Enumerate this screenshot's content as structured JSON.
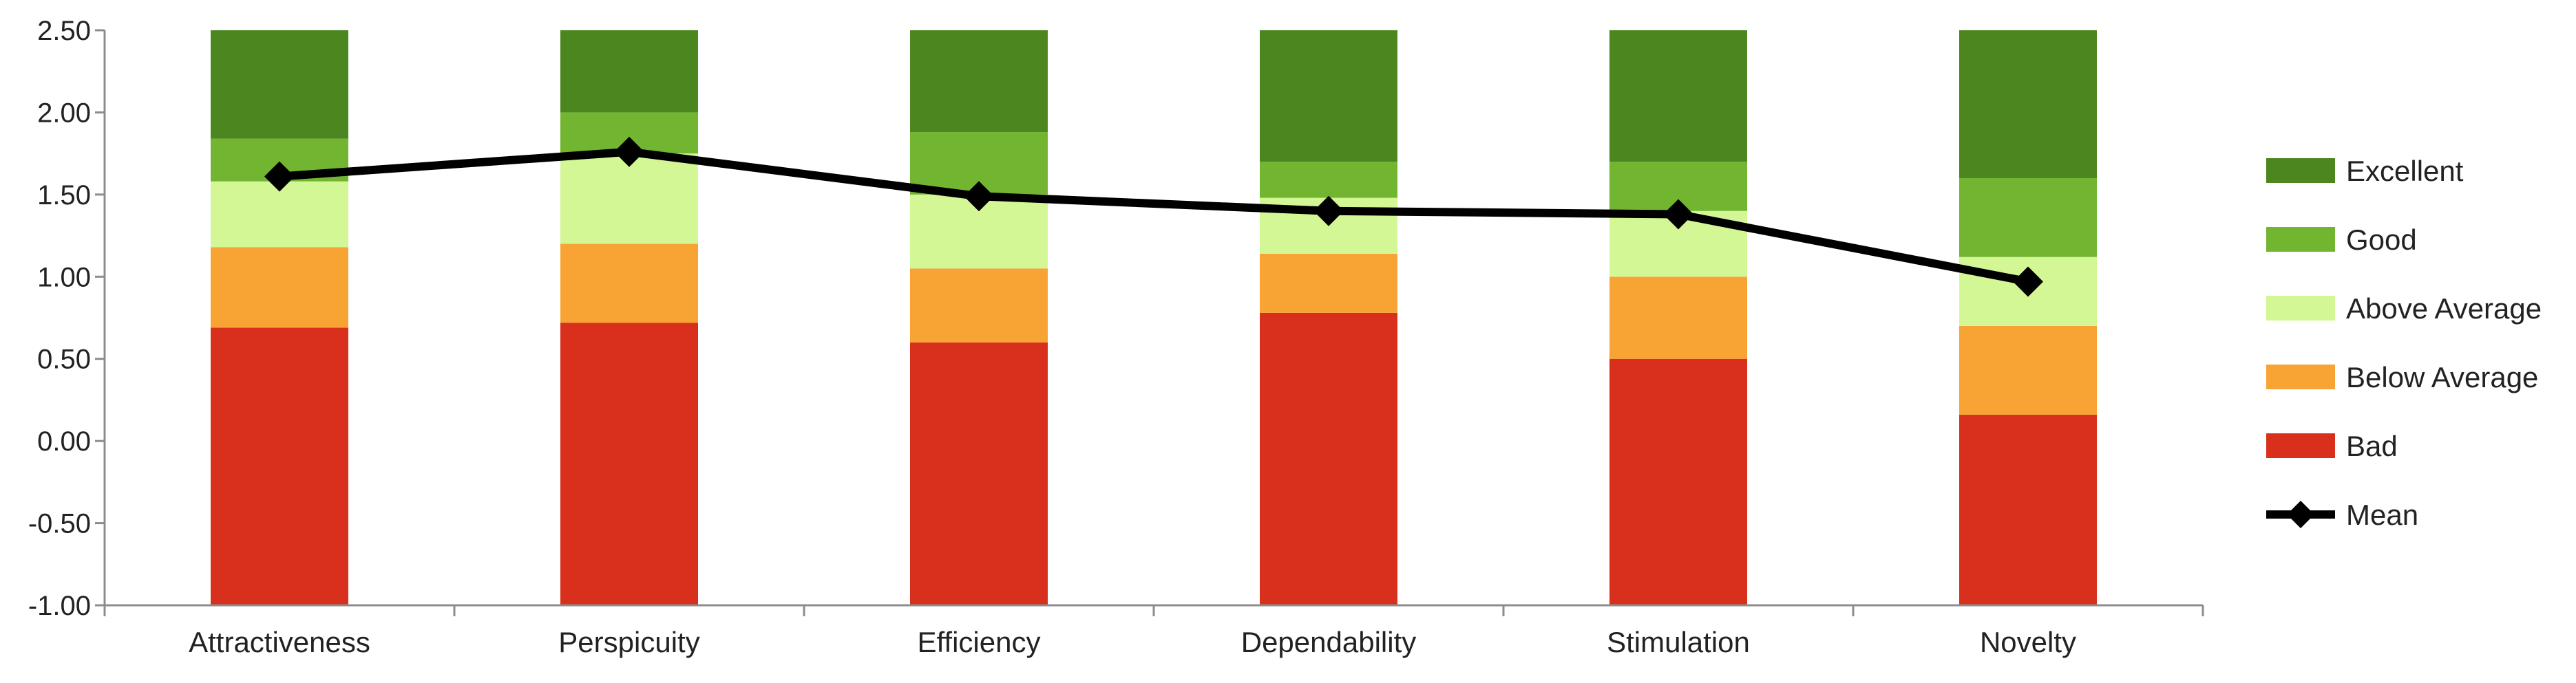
{
  "chart_data": {
    "type": "bar",
    "stacked": true,
    "title": "",
    "xlabel": "",
    "ylabel": "",
    "ylim": [
      -1.0,
      2.5
    ],
    "y_ticks": [
      "2.50",
      "2.00",
      "1.50",
      "1.00",
      "0.50",
      "0.00",
      "-0.50",
      "-1.00"
    ],
    "y_tick_values": [
      2.5,
      2.0,
      1.5,
      1.0,
      0.5,
      0.0,
      -0.5,
      -1.0
    ],
    "gridlines": false,
    "legend_position": "right",
    "categories": [
      "Attractiveness",
      "Perspicuity",
      "Efficiency",
      "Dependability",
      "Stimulation",
      "Novelty"
    ],
    "series": [
      {
        "name": "Bad",
        "color": "#d8301c",
        "boundaries": [
          [
            -1.0,
            0.69
          ],
          [
            -1.0,
            0.72
          ],
          [
            -1.0,
            0.6
          ],
          [
            -1.0,
            0.78
          ],
          [
            -1.0,
            0.5
          ],
          [
            -1.0,
            0.16
          ]
        ]
      },
      {
        "name": "Below Average",
        "color": "#f8a434",
        "boundaries": [
          [
            0.69,
            1.18
          ],
          [
            0.72,
            1.2
          ],
          [
            0.6,
            1.05
          ],
          [
            0.78,
            1.14
          ],
          [
            0.5,
            1.0
          ],
          [
            0.16,
            0.7
          ]
        ]
      },
      {
        "name": "Above Average",
        "color": "#d4f796",
        "boundaries": [
          [
            1.18,
            1.58
          ],
          [
            1.2,
            1.75
          ],
          [
            1.05,
            1.5
          ],
          [
            1.14,
            1.48
          ],
          [
            1.0,
            1.4
          ],
          [
            0.7,
            1.12
          ]
        ]
      },
      {
        "name": "Good",
        "color": "#72b531",
        "boundaries": [
          [
            1.58,
            1.84
          ],
          [
            1.75,
            2.0
          ],
          [
            1.5,
            1.88
          ],
          [
            1.48,
            1.7
          ],
          [
            1.4,
            1.7
          ],
          [
            1.12,
            1.6
          ]
        ]
      },
      {
        "name": "Excellent",
        "color": "#4b861e",
        "boundaries": [
          [
            1.84,
            2.5
          ],
          [
            2.0,
            2.5
          ],
          [
            1.88,
            2.5
          ],
          [
            1.7,
            2.5
          ],
          [
            1.7,
            2.5
          ],
          [
            1.6,
            2.5
          ]
        ]
      }
    ],
    "mean": {
      "name": "Mean",
      "color": "#000000",
      "values": [
        1.61,
        1.76,
        1.49,
        1.4,
        1.38,
        0.97
      ]
    },
    "legend": [
      "Excellent",
      "Good",
      "Above Average",
      "Below Average",
      "Bad",
      "Mean"
    ]
  }
}
